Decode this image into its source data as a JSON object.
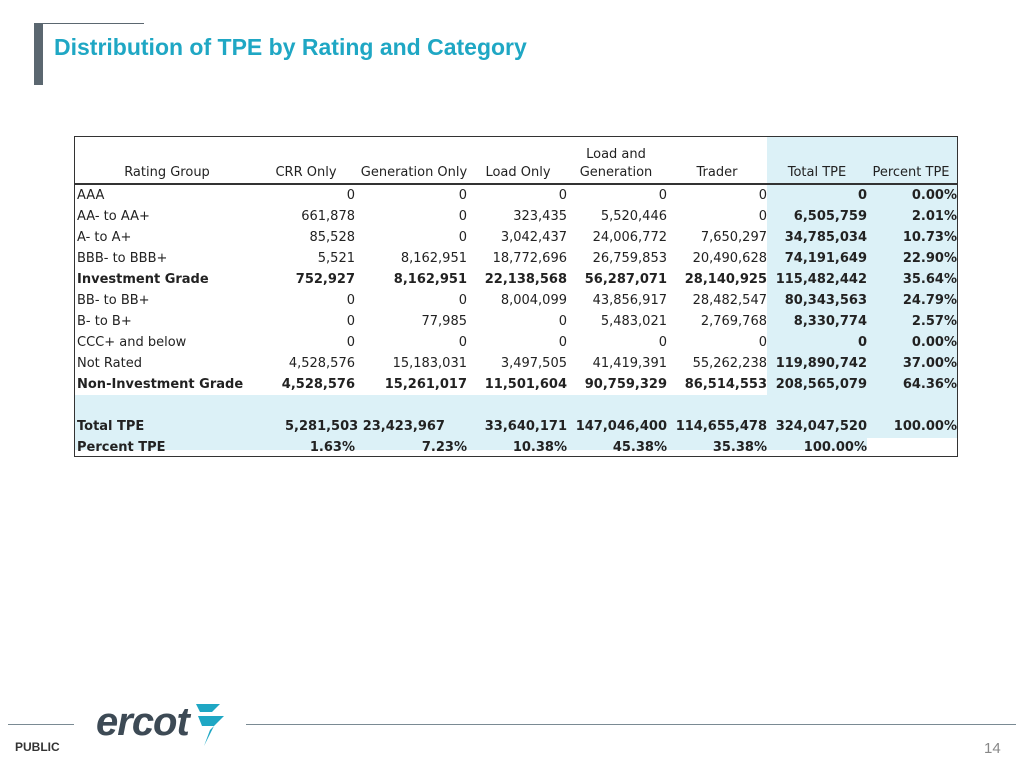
{
  "title": "Distribution of TPE by Rating and Category",
  "columns": [
    "Rating Group",
    "CRR Only",
    "Generation Only",
    "Load Only",
    "Load and",
    "Generation",
    "Trader",
    "Total TPE",
    "Percent TPE"
  ],
  "rows": [
    {
      "name": "AAA",
      "crr": "0",
      "gen": "0",
      "load": "0",
      "lg": "0",
      "trader": "0",
      "total": "0",
      "pct": "0.00%",
      "bold": false
    },
    {
      "name": "AA- to AA+",
      "crr": "661,878",
      "gen": "0",
      "load": "323,435",
      "lg": "5,520,446",
      "trader": "0",
      "total": "6,505,759",
      "pct": "2.01%",
      "bold": false
    },
    {
      "name": "A- to A+",
      "crr": "85,528",
      "gen": "0",
      "load": "3,042,437",
      "lg": "24,006,772",
      "trader": "7,650,297",
      "total": "34,785,034",
      "pct": "10.73%",
      "bold": false
    },
    {
      "name": "BBB- to BBB+",
      "crr": "5,521",
      "gen": "8,162,951",
      "load": "18,772,696",
      "lg": "26,759,853",
      "trader": "20,490,628",
      "total": "74,191,649",
      "pct": "22.90%",
      "bold": false
    },
    {
      "name": "Investment Grade",
      "crr": "752,927",
      "gen": "8,162,951",
      "load": "22,138,568",
      "lg": "56,287,071",
      "trader": "28,140,925",
      "total": "115,482,442",
      "pct": "35.64%",
      "bold": true
    },
    {
      "name": "BB- to BB+",
      "crr": "0",
      "gen": "0",
      "load": "8,004,099",
      "lg": "43,856,917",
      "trader": "28,482,547",
      "total": "80,343,563",
      "pct": "24.79%",
      "bold": false
    },
    {
      "name": "B- to B+",
      "crr": "0",
      "gen": "77,985",
      "load": "0",
      "lg": "5,483,021",
      "trader": "2,769,768",
      "total": "8,330,774",
      "pct": "2.57%",
      "bold": false
    },
    {
      "name": "CCC+ and below",
      "crr": "0",
      "gen": "0",
      "load": "0",
      "lg": "0",
      "trader": "0",
      "total": "0",
      "pct": "0.00%",
      "bold": false
    },
    {
      "name": "Not Rated",
      "crr": "4,528,576",
      "gen": "15,183,031",
      "load": "3,497,505",
      "lg": "41,419,391",
      "trader": "55,262,238",
      "total": "119,890,742",
      "pct": "37.00%",
      "bold": false
    },
    {
      "name": "Non-Investment Grade",
      "crr": "4,528,576",
      "gen": "15,261,017",
      "load": "11,501,604",
      "lg": "90,759,329",
      "trader": "86,514,553",
      "total": "208,565,079",
      "pct": "64.36%",
      "bold": true
    }
  ],
  "total_row": {
    "name": "Total TPE",
    "crr_gen": "5,281,503 23,423,967",
    "load": "33,640,171",
    "lg": "147,046,400",
    "trader": "114,655,478",
    "total": "324,047,520",
    "pct": "100.00%"
  },
  "percent_row": {
    "name": "Percent TPE",
    "crr": "1.63%",
    "gen": "7.23%",
    "load": "10.38%",
    "lg": "45.38%",
    "trader": "35.38%",
    "total": "100.00%"
  },
  "footer": {
    "classification": "PUBLIC",
    "logo": "ercot",
    "page": "14"
  },
  "colors": {
    "title": "#1fa7c4",
    "highlight": "#dcf1f7"
  }
}
